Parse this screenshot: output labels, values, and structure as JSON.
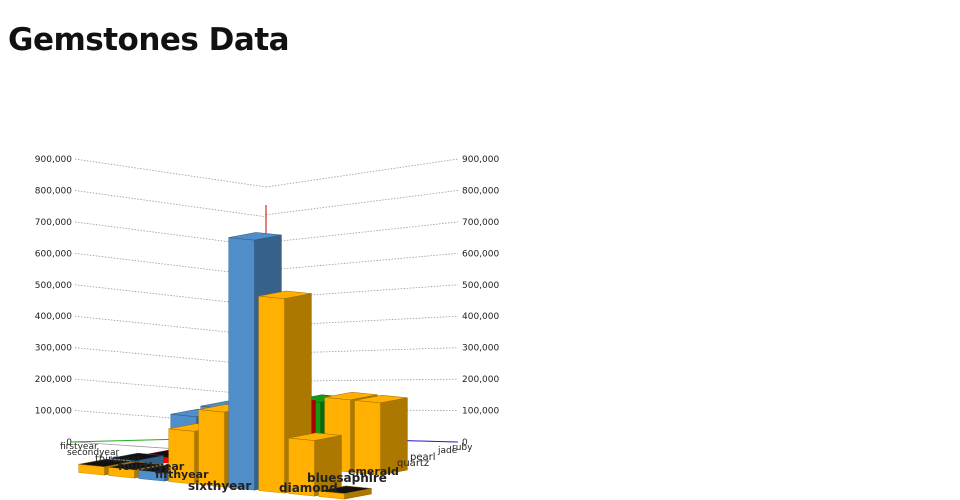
{
  "title": "Gemstones Data",
  "chart_data": {
    "type": "bar3d",
    "title": "Gemstones Data",
    "x_categories": [
      "firstyear",
      "secondyear",
      "thirdyear",
      "fourthyear",
      "fifthyear",
      "sixthyear"
    ],
    "z_categories": [
      "diamond",
      "bluesaphire",
      "emerald",
      "quartz",
      "pearl",
      "jade",
      "ruby"
    ],
    "yticks": [
      "0",
      "100,000",
      "200,000",
      "300,000",
      "400,000",
      "500,000",
      "600,000",
      "700,000",
      "800,000",
      "900,000"
    ],
    "ylim": [
      0,
      900000
    ],
    "grid": true,
    "colors": {
      "red": "#ff0000",
      "blue": "#4f8ec9",
      "orange": "#ffb000",
      "green": "#139a13",
      "divider": "#cc0000",
      "zaxis": "#2222cc",
      "xaxis": "#22aa22"
    },
    "bars": [
      {
        "x": 0,
        "z": 0,
        "color": "orange",
        "value": 20000
      },
      {
        "x": 1,
        "z": 0,
        "color": "orange",
        "value": 20000
      },
      {
        "x": 1,
        "z": 1,
        "color": "green",
        "value": 20000
      },
      {
        "x": 2,
        "z": 1,
        "color": "green",
        "value": 20000
      },
      {
        "x": 2,
        "z": 0,
        "color": "red",
        "value": 20000
      },
      {
        "x": 3,
        "z": 0,
        "color": "red",
        "value": 20000
      },
      {
        "x": 4,
        "z": 0,
        "color": "blue",
        "value": 30000
      },
      {
        "x": 5,
        "z": 0,
        "color": "orange",
        "value": 30000
      },
      {
        "x": 5,
        "z": 1,
        "color": "orange",
        "value": 30000
      },
      {
        "x": 5,
        "z": 2,
        "color": "blue",
        "value": 30000
      },
      {
        "x": 2,
        "z": 5,
        "color": "orange",
        "value": 260000
      },
      {
        "x": 2,
        "z": 4,
        "color": "green",
        "value": 240000
      },
      {
        "x": 2,
        "z": 6,
        "color": "orange",
        "value": 260000
      },
      {
        "x": 3,
        "z": 3,
        "color": "red",
        "value": 230000
      },
      {
        "x": 3,
        "z": 4,
        "color": "red",
        "value": 250000
      },
      {
        "x": 4,
        "z": 4,
        "color": "red",
        "value": 300000
      },
      {
        "x": 4,
        "z": 2,
        "color": "blue",
        "value": 210000
      },
      {
        "x": 4,
        "z": 3,
        "color": "blue",
        "value": 250000
      },
      {
        "x": 5,
        "z": 3,
        "color": "orange",
        "value": 190000
      },
      {
        "x": 5,
        "z": 4,
        "color": "orange",
        "value": 270000
      },
      {
        "x": 5,
        "z": 5,
        "color": "blue",
        "value": 900000
      },
      {
        "x": 5,
        "z": 6,
        "color": "orange",
        "value": 700000
      },
      {
        "x": 5,
        "z": 7,
        "color": "orange",
        "value": 200000
      },
      {
        "x": 5,
        "z": 8,
        "color": "orange",
        "value": 20000
      }
    ]
  }
}
